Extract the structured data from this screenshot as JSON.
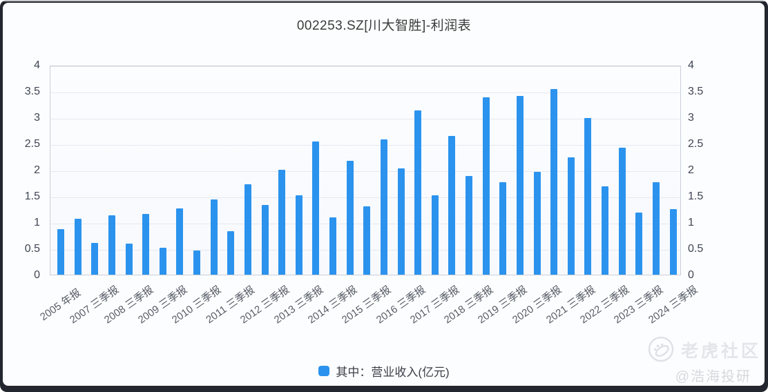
{
  "chart_data": {
    "type": "bar",
    "title": "002253.SZ[川大智胜]-利润表",
    "ylabel": "",
    "xlabel": "",
    "ylim": [
      0,
      4
    ],
    "ytick_labels_top_to_bottom": [
      "4",
      "3.5",
      "3",
      "2.5",
      "2",
      "1.5",
      "1",
      "0.5",
      "0"
    ],
    "grid": true,
    "n_bars": 37,
    "series": [
      {
        "name": "其中：营业收入(亿元)",
        "color": "#2b93ee",
        "values": [
          0.88,
          1.07,
          0.61,
          1.14,
          0.6,
          1.17,
          0.52,
          1.27,
          0.46,
          1.44,
          0.83,
          1.73,
          1.34,
          2.02,
          1.53,
          2.56,
          1.1,
          2.19,
          1.31,
          2.6,
          2.04,
          3.15,
          1.53,
          2.66,
          1.89,
          3.4,
          1.78,
          3.43,
          1.97,
          3.56,
          2.25,
          3.01,
          1.7,
          2.44,
          1.19,
          1.78,
          1.26
        ]
      }
    ],
    "x_tick_labels": [
      "2005 年报",
      "2007 三季报",
      "2008 三季报",
      "2009 三季报",
      "2010 三季报",
      "2011 三季报",
      "2012 三季报",
      "2013 三季报",
      "2014 三季报",
      "2015 三季报",
      "2016 三季报",
      "2017 三季报",
      "2018 三季报",
      "2019 三季报",
      "2020 三季报",
      "2021 三季报",
      "2022 三季报",
      "2023 三季报",
      "2024 三季报"
    ],
    "x_tick_bar_indices": [
      0,
      2,
      4,
      6,
      8,
      10,
      12,
      14,
      16,
      18,
      20,
      22,
      24,
      26,
      28,
      30,
      32,
      34,
      36
    ],
    "legend_position": "bottom-center"
  },
  "legend": {
    "label": "其中：营业收入(亿元)",
    "marker_color": "#2b93ee"
  },
  "watermark": {
    "logo": "tiger-community-logo",
    "brand": "老虎社区",
    "handle": "@浩海投研"
  },
  "colors": {
    "frame": "#23262e",
    "card_bg": "#fcfdfe",
    "grid_line": "#e4e8ef",
    "axis_text": "#3d4553",
    "x_label_text": "#565c66"
  }
}
